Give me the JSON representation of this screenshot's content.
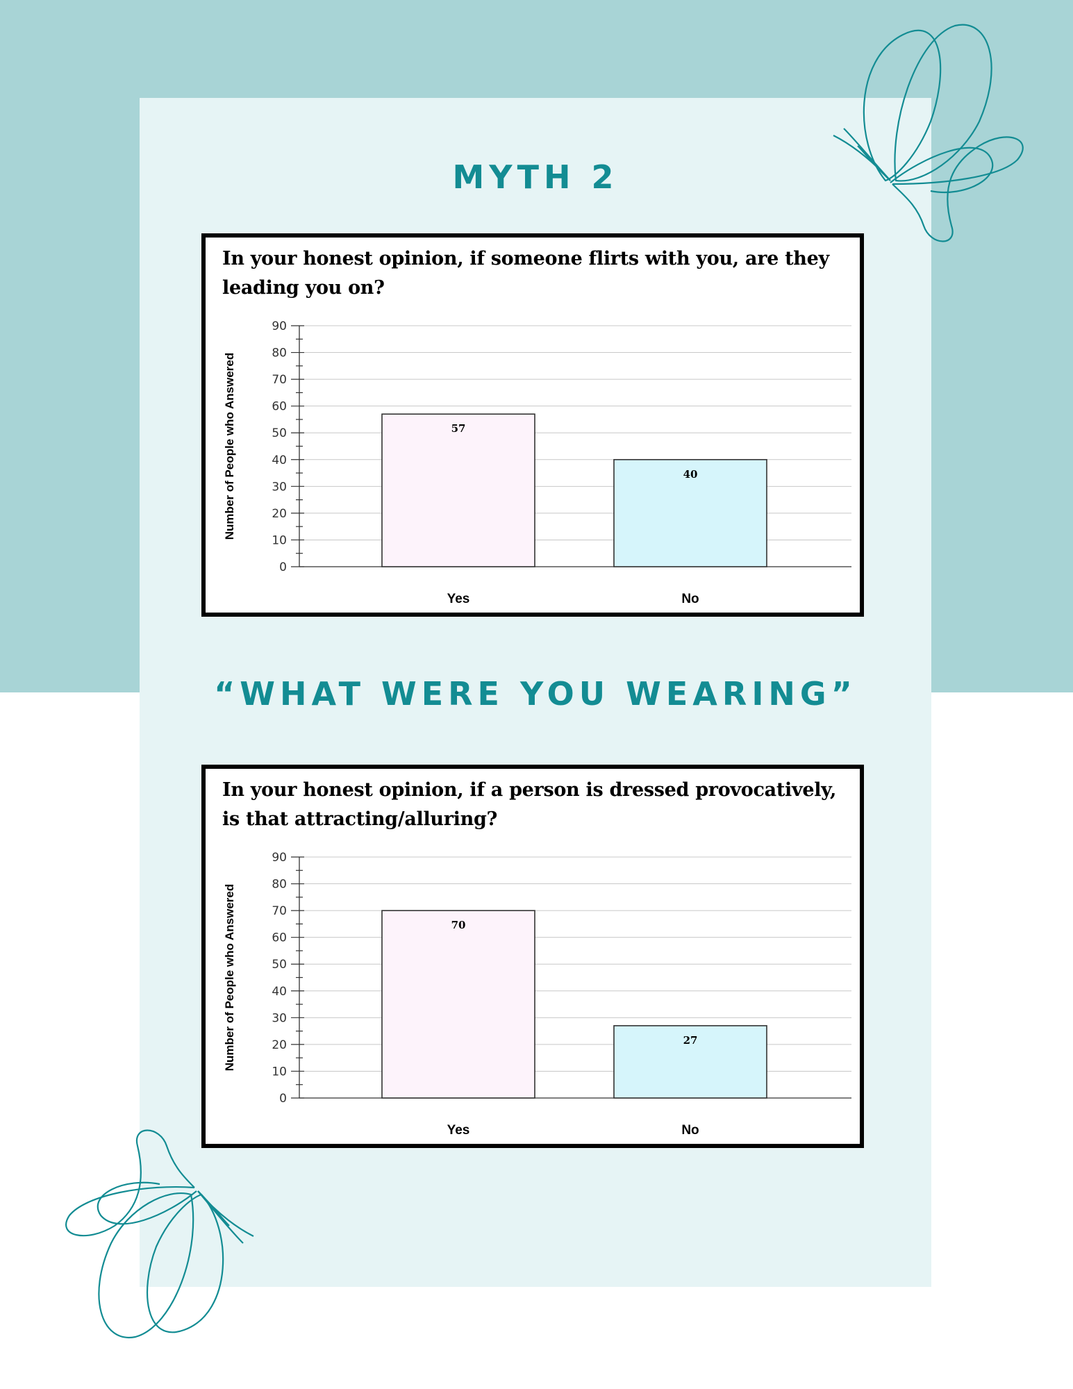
{
  "headings": {
    "myth": "MYTH 2",
    "wearing": "“WHAT WERE YOU WEARING”"
  },
  "colors": {
    "band": "#a8d4d6",
    "panel": "#e6f4f5",
    "heading": "#138c93",
    "bar_yes": "#fdf3fb",
    "bar_no": "#d6f5fb"
  },
  "icons": [
    "butterfly-icon"
  ],
  "chart_data": [
    {
      "type": "bar",
      "title": "In your honest opinion, if someone flirts with you, are they leading you on?",
      "ylabel": "Number of People who Answered",
      "xlabel": "",
      "categories": [
        "Yes",
        "No"
      ],
      "values": [
        57,
        40
      ],
      "ylim": [
        0,
        90
      ],
      "yticks": [
        0,
        10,
        20,
        30,
        40,
        50,
        60,
        70,
        80,
        90
      ],
      "grid": true
    },
    {
      "type": "bar",
      "title": "In your honest opinion, if a person is dressed provocatively, is that attracting/alluring?",
      "ylabel": "Number of People who Answered",
      "xlabel": "",
      "categories": [
        "Yes",
        "No"
      ],
      "values": [
        70,
        27
      ],
      "ylim": [
        0,
        90
      ],
      "yticks": [
        0,
        10,
        20,
        30,
        40,
        50,
        60,
        70,
        80,
        90
      ],
      "grid": true
    }
  ]
}
